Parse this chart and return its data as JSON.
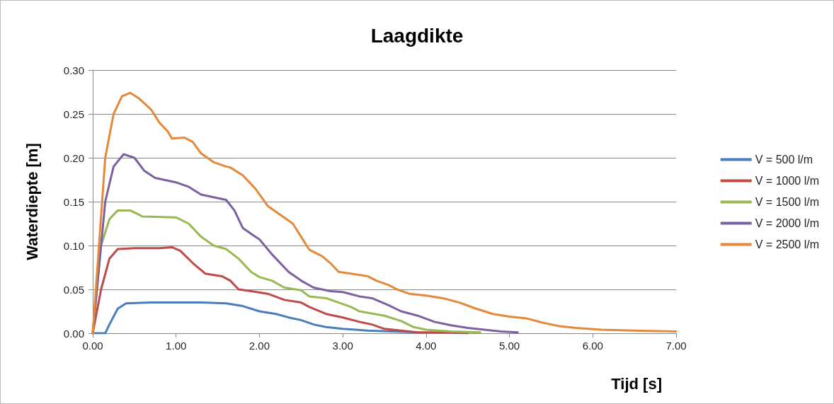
{
  "chart_data": {
    "type": "line",
    "title": "Laagdikte",
    "xlabel": "Tijd [s]",
    "ylabel": "Waterdiepte [m]",
    "xlim": [
      0,
      7
    ],
    "ylim": [
      0,
      0.3
    ],
    "xticks": [
      {
        "value": 0,
        "label": "0.00"
      },
      {
        "value": 1,
        "label": "1.00"
      },
      {
        "value": 2,
        "label": "2.00"
      },
      {
        "value": 3,
        "label": "3.00"
      },
      {
        "value": 4,
        "label": "4.00"
      },
      {
        "value": 5,
        "label": "5.00"
      },
      {
        "value": 6,
        "label": "6.00"
      },
      {
        "value": 7,
        "label": "7.00"
      }
    ],
    "yticks": [
      {
        "value": 0,
        "label": "0.00"
      },
      {
        "value": 0.05,
        "label": "0.05"
      },
      {
        "value": 0.1,
        "label": "0.10"
      },
      {
        "value": 0.15,
        "label": "0.15"
      },
      {
        "value": 0.2,
        "label": "0.20"
      },
      {
        "value": 0.25,
        "label": "0.25"
      },
      {
        "value": 0.3,
        "label": "0.30"
      }
    ],
    "grid": "y",
    "legend": "right",
    "marker": "none",
    "line_style": "solid",
    "series": [
      {
        "name": "V = 500 l/m",
        "color": "#4a7ebb",
        "x": [
          0,
          0.15,
          0.2,
          0.3,
          0.4,
          0.7,
          1.0,
          1.3,
          1.6,
          1.8,
          2.0,
          2.2,
          2.35,
          2.5,
          2.65,
          2.8,
          3.0,
          3.3,
          3.6,
          3.9
        ],
        "values": [
          0,
          0,
          0.01,
          0.028,
          0.034,
          0.035,
          0.035,
          0.035,
          0.034,
          0.031,
          0.025,
          0.022,
          0.018,
          0.015,
          0.01,
          0.007,
          0.005,
          0.003,
          0.002,
          0.001
        ]
      },
      {
        "name": "V = 1000 l/m",
        "color": "#be4b48",
        "x": [
          0,
          0.1,
          0.2,
          0.3,
          0.5,
          0.8,
          0.95,
          1.05,
          1.2,
          1.35,
          1.55,
          1.65,
          1.75,
          1.9,
          2.1,
          2.3,
          2.5,
          2.6,
          2.8,
          3.0,
          3.2,
          3.35,
          3.5,
          3.7,
          3.9,
          4.2,
          4.5
        ],
        "values": [
          0,
          0.05,
          0.085,
          0.096,
          0.097,
          0.097,
          0.098,
          0.094,
          0.08,
          0.068,
          0.065,
          0.06,
          0.05,
          0.048,
          0.045,
          0.038,
          0.035,
          0.03,
          0.022,
          0.018,
          0.013,
          0.01,
          0.005,
          0.003,
          0.001,
          0.001,
          0
        ]
      },
      {
        "name": "V = 1500 l/m",
        "color": "#98b954",
        "x": [
          0,
          0.1,
          0.2,
          0.3,
          0.45,
          0.6,
          1.0,
          1.15,
          1.3,
          1.45,
          1.6,
          1.75,
          1.9,
          2.0,
          2.15,
          2.3,
          2.5,
          2.6,
          2.8,
          2.95,
          3.1,
          3.2,
          3.5,
          3.7,
          3.85,
          4.0,
          4.3,
          4.65
        ],
        "values": [
          0,
          0.1,
          0.13,
          0.14,
          0.14,
          0.133,
          0.132,
          0.125,
          0.11,
          0.1,
          0.096,
          0.085,
          0.07,
          0.064,
          0.06,
          0.052,
          0.049,
          0.042,
          0.04,
          0.035,
          0.03,
          0.025,
          0.02,
          0.014,
          0.007,
          0.004,
          0.002,
          0.001
        ]
      },
      {
        "name": "V = 2000 l/m",
        "color": "#7d60a0",
        "x": [
          0,
          0.15,
          0.25,
          0.37,
          0.5,
          0.62,
          0.75,
          1.0,
          1.15,
          1.3,
          1.5,
          1.6,
          1.7,
          1.8,
          1.95,
          2.0,
          2.15,
          2.35,
          2.5,
          2.65,
          2.85,
          3.0,
          3.2,
          3.35,
          3.55,
          3.7,
          3.9,
          4.1,
          4.3,
          4.5,
          4.7,
          4.9,
          5.1
        ],
        "values": [
          0,
          0.15,
          0.19,
          0.204,
          0.2,
          0.185,
          0.177,
          0.172,
          0.167,
          0.158,
          0.154,
          0.152,
          0.14,
          0.12,
          0.11,
          0.107,
          0.09,
          0.07,
          0.06,
          0.052,
          0.048,
          0.047,
          0.042,
          0.04,
          0.032,
          0.025,
          0.02,
          0.013,
          0.009,
          0.006,
          0.004,
          0.002,
          0.001
        ]
      },
      {
        "name": "V = 2500 l/m",
        "color": "#e4893a",
        "x": [
          0,
          0.15,
          0.25,
          0.35,
          0.45,
          0.55,
          0.7,
          0.8,
          0.9,
          0.95,
          1.1,
          1.2,
          1.3,
          1.45,
          1.6,
          1.65,
          1.8,
          1.95,
          2.1,
          2.25,
          2.4,
          2.5,
          2.6,
          2.75,
          2.85,
          2.95,
          3.1,
          3.3,
          3.4,
          3.55,
          3.65,
          3.8,
          4.0,
          4.2,
          4.4,
          4.6,
          4.8,
          5.0,
          5.2,
          5.4,
          5.6,
          5.8,
          6.1,
          6.5,
          7.0
        ],
        "values": [
          0,
          0.2,
          0.25,
          0.27,
          0.274,
          0.268,
          0.255,
          0.24,
          0.23,
          0.222,
          0.223,
          0.218,
          0.205,
          0.195,
          0.19,
          0.189,
          0.18,
          0.165,
          0.145,
          0.135,
          0.125,
          0.11,
          0.095,
          0.088,
          0.08,
          0.07,
          0.068,
          0.065,
          0.06,
          0.055,
          0.05,
          0.045,
          0.043,
          0.04,
          0.035,
          0.028,
          0.022,
          0.019,
          0.017,
          0.012,
          0.008,
          0.006,
          0.004,
          0.003,
          0.002
        ]
      }
    ]
  }
}
